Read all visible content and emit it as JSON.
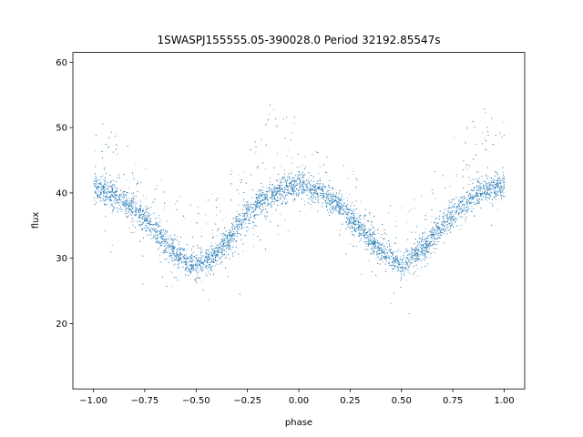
{
  "chart_data": {
    "type": "scatter",
    "title": "1SWASPJ155555.05-390028.0 Period 32192.85547s",
    "xlabel": "phase",
    "ylabel": "flux",
    "xlim": [
      -1.1,
      1.1
    ],
    "ylim": [
      10.0,
      61.5
    ],
    "xticks": [
      -1.0,
      -0.75,
      -0.5,
      -0.25,
      0.0,
      0.25,
      0.5,
      0.75,
      1.0
    ],
    "xtick_labels": [
      "−1.00",
      "−0.75",
      "−0.50",
      "−0.25",
      "0.00",
      "0.25",
      "0.50",
      "0.75",
      "1.00"
    ],
    "yticks": [
      20,
      30,
      40,
      50,
      60
    ],
    "ytick_labels": [
      "20",
      "30",
      "40",
      "50",
      "60"
    ],
    "grid": false,
    "legend": "none",
    "marker_color": "#1f77b4",
    "series": [
      {
        "phase_range": [
          -1.0,
          1.0
        ],
        "period_in_phase": 1.0,
        "trend": {
          "phase": [
            -1.0,
            -0.9,
            -0.8,
            -0.7,
            -0.6,
            -0.5,
            -0.4,
            -0.3,
            -0.2,
            -0.1,
            0.0,
            0.1,
            0.2,
            0.3,
            0.4,
            0.5,
            0.6,
            0.7,
            0.8,
            0.9,
            1.0
          ],
          "flux": [
            41.0,
            39.7,
            37.5,
            34.3,
            30.6,
            28.7,
            30.8,
            35.0,
            38.5,
            40.5,
            41.2,
            40.3,
            38.0,
            34.8,
            31.0,
            28.8,
            31.3,
            35.2,
            38.5,
            40.5,
            41.2
          ]
        },
        "upper_branch": {
          "phase": [
            -0.2,
            -0.15,
            -0.1,
            -0.05,
            0.0,
            0.05,
            0.1,
            0.15,
            0.2,
            0.8,
            0.85,
            0.9,
            0.95,
            1.0
          ],
          "flux": [
            50.0,
            53.0,
            53.5,
            52.5,
            50.0,
            48.0,
            47.0,
            45.0,
            42.0,
            50.0,
            52.5,
            53.5,
            52.0,
            50.0
          ]
        },
        "point_count": 9000,
        "approx_scatter": 1.0
      }
    ]
  }
}
